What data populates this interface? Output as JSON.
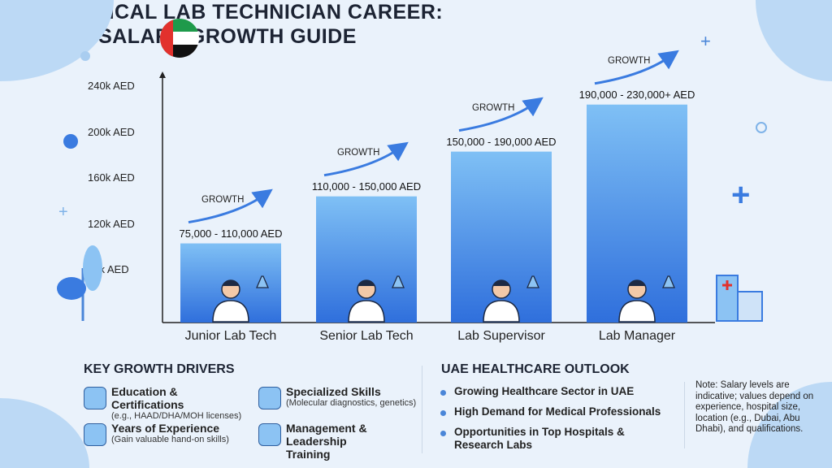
{
  "title_line1": "UAE MEDICAL LAB TECHNICIAN CAREER:",
  "title_line2": "SALARY GROWTH GUIDE",
  "colors": {
    "bar_top": "#7fc0f5",
    "bar_bottom": "#2f6fdc",
    "background": "#eaf2fb",
    "accent": "#3a7be0"
  },
  "chart_data": {
    "type": "bar",
    "categories": [
      "Junior Lab Tech",
      "Senior Lab Tech",
      "Lab Supervisor",
      "Lab Manager"
    ],
    "values": [
      103,
      144,
      183,
      224
    ],
    "value_unit": "k AED",
    "data_labels": [
      "75,000 - 110,000 AED",
      "110,000 - 150,000 AED",
      "150,000 - 190,000 AED",
      "190,000 - 230,000+ AED"
    ],
    "annotations": [
      "GROWTH",
      "GROWTH",
      "GROWTH",
      "GROWTH"
    ],
    "y_ticks": [
      "80k AED",
      "120k AED",
      "160k AED",
      "200k AED",
      "240k AED"
    ],
    "y_tick_values": [
      80,
      120,
      160,
      200,
      240
    ],
    "ylim": [
      34,
      250
    ],
    "grid": false,
    "icons": [
      "microscope-scientist-icon",
      "scientist-flask-icon",
      "supervisor-test-tube-icon",
      "manager-building-icon"
    ]
  },
  "drivers": {
    "heading": "KEY GROWTH DRIVERS",
    "items": [
      {
        "title": "Education & Certifications",
        "sub": "(e.g., HAAD/DHA/MOH licenses)",
        "icon": "graduation-cap-icon"
      },
      {
        "title": "Specialized Skills",
        "sub": "(Molecular diagnostics, genetics)",
        "icon": "dna-icon"
      },
      {
        "title": "Years of Experience",
        "sub": "(Gain valuable hand-on skills)",
        "icon": "lab-flask-icon"
      },
      {
        "title": "Management & Leadership Training",
        "sub": "",
        "icon": "team-icon"
      }
    ]
  },
  "outlook": {
    "heading": "UAE HEALTHCARE OUTLOOK",
    "items": [
      "Growing Healthcare Sector in UAE",
      "High Demand for Medical Professionals",
      "Opportunities in Top Hospitals & Research Labs"
    ]
  },
  "note": "Note: Salary levels are indicative; values depend on experience, hospital size, location (e.g., Dubai, Abu Dhabi), and qualifications."
}
